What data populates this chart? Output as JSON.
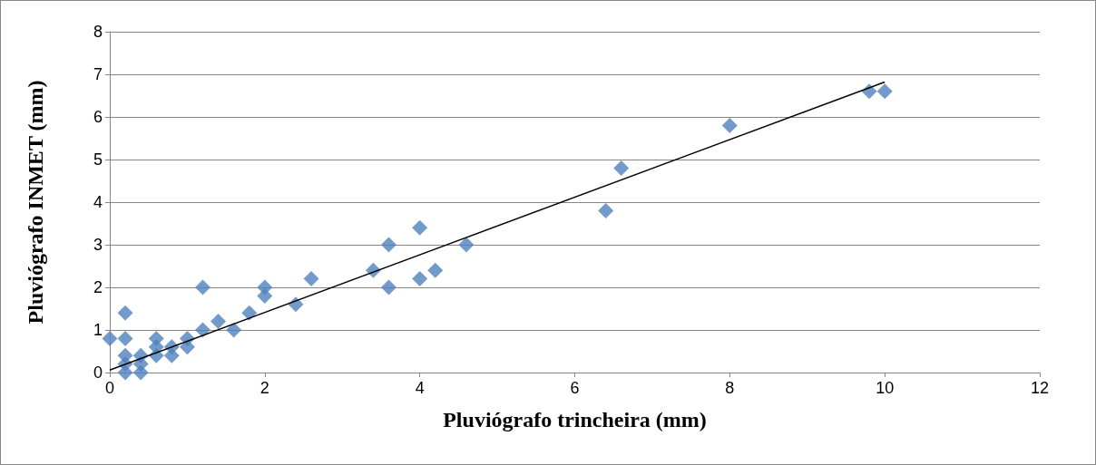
{
  "chart_data": {
    "type": "scatter",
    "xlabel": "Pluviógrafo trincheira (mm)",
    "ylabel": "Pluviógrafo INMET (mm)",
    "xlim": [
      0,
      12
    ],
    "xticks": [
      0,
      2,
      4,
      6,
      8,
      10,
      12
    ],
    "ylim": [
      0,
      8
    ],
    "yticks": [
      0,
      1,
      2,
      3,
      4,
      5,
      6,
      7,
      8
    ],
    "grid": "y",
    "marker": "diamond",
    "series": [
      {
        "color": "#4f81bd",
        "x": [
          0,
          0.2,
          0.2,
          0.2,
          0.2,
          0.2,
          0.4,
          0.4,
          0.4,
          0.6,
          0.6,
          0.6,
          0.8,
          0.8,
          1,
          1,
          1.2,
          1.2,
          1.4,
          1.6,
          1.8,
          2,
          2,
          2.4,
          2.6,
          3.4,
          3.6,
          3.6,
          4,
          4,
          4.2,
          4.6,
          6.4,
          6.6,
          8,
          9.8,
          10
        ],
        "values": [
          0.8,
          1.4,
          0.8,
          0.4,
          0.2,
          0,
          0.4,
          0.2,
          0,
          0.8,
          0.6,
          0.4,
          0.6,
          0.4,
          0.8,
          0.6,
          1,
          2,
          1.2,
          1,
          1.4,
          2,
          1.8,
          1.6,
          2.2,
          2.4,
          3,
          2,
          3.4,
          2.2,
          2.4,
          3,
          3.8,
          4.8,
          5.8,
          6.6,
          6.6
        ]
      },
      {
        "type": "line",
        "color": "#000000",
        "marker": "none",
        "line_style": "solid",
        "x": [
          0,
          10
        ],
        "values": [
          0.06,
          6.82
        ]
      }
    ]
  }
}
